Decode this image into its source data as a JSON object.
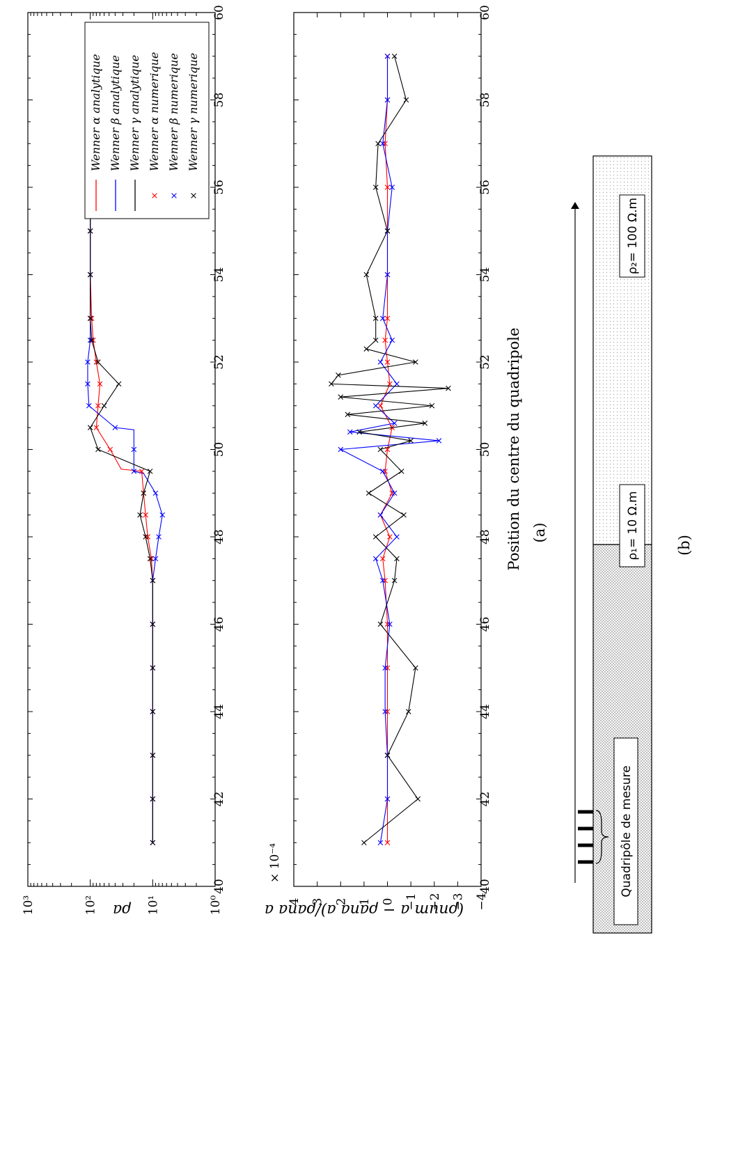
{
  "chart_data": [
    {
      "type": "line",
      "panel": "top",
      "ylabel": "ρa",
      "yscale": "log",
      "ylim": [
        1,
        1000
      ],
      "xlim": [
        40,
        60
      ],
      "xticks": [
        "40",
        "42",
        "44",
        "46",
        "48",
        "50",
        "52",
        "54",
        "56",
        "58",
        "60"
      ],
      "yticks": [
        "10⁰",
        "10¹",
        "10²",
        "10³"
      ],
      "legend": {
        "position": "top-right",
        "entries": [
          "Wenner α analytique",
          "Wenner β analytique",
          "Wenner γ analytique",
          "Wenner α numerique",
          "Wenner β numerique",
          "Wenner γ numerique"
        ]
      },
      "series": [
        {
          "name": "Wenner α analytique",
          "color": "#ff0000",
          "style": "line",
          "x": [
            41,
            42,
            43,
            44,
            45,
            46,
            47,
            47.5,
            48,
            48.5,
            49,
            49.5,
            49.55,
            50,
            50.5,
            51,
            51.5,
            52,
            52.5,
            53,
            54,
            55,
            56,
            57,
            58,
            59
          ],
          "y": [
            10,
            10,
            10,
            10,
            10,
            10,
            10,
            10.5,
            12,
            13,
            14,
            15,
            32,
            48,
            80,
            75,
            70,
            80,
            90,
            95,
            100,
            100,
            100,
            100,
            100,
            100
          ]
        },
        {
          "name": "Wenner β analytique",
          "color": "#0000ff",
          "style": "line",
          "x": [
            41,
            42,
            43,
            44,
            45,
            46,
            47,
            47.5,
            48,
            48.5,
            49,
            49.45,
            49.5,
            50,
            50.45,
            50.5,
            51,
            51.5,
            52,
            52.5,
            53,
            54,
            55,
            56,
            57,
            58,
            59
          ],
          "y": [
            10,
            10,
            10,
            10,
            10,
            10,
            10,
            9,
            8,
            7,
            9,
            14,
            20,
            20,
            20,
            40,
            105,
            110,
            110,
            100,
            100,
            100,
            100,
            100,
            100,
            100,
            100
          ]
        },
        {
          "name": "Wenner γ analytique",
          "color": "#000000",
          "style": "line",
          "x": [
            41,
            42,
            43,
            44,
            45,
            46,
            47,
            47.5,
            48,
            48.5,
            49,
            49.5,
            50,
            50.5,
            51,
            51.5,
            52,
            52.5,
            53,
            54,
            55,
            56,
            57,
            58,
            59
          ],
          "y": [
            10,
            10,
            10,
            10,
            10,
            10,
            10,
            11,
            13,
            16,
            14,
            11,
            75,
            100,
            60,
            35,
            75,
            95,
            100,
            100,
            100,
            100,
            100,
            100,
            100
          ]
        },
        {
          "name": "Wenner α numerique",
          "color": "#ff0000",
          "style": "markers",
          "x": [
            41,
            42,
            43,
            44,
            45,
            46,
            47,
            47.5,
            48,
            48.5,
            49,
            49.5,
            50,
            50.5,
            51,
            51.5,
            52,
            52.5,
            53,
            54,
            55,
            56,
            57,
            58,
            59
          ],
          "y": [
            10,
            10,
            10,
            10,
            10,
            10,
            10,
            10.5,
            12,
            13,
            14,
            15,
            48,
            80,
            75,
            70,
            80,
            90,
            95,
            100,
            100,
            100,
            100,
            100,
            100
          ]
        },
        {
          "name": "Wenner β numerique",
          "color": "#0000ff",
          "style": "markers",
          "x": [
            41,
            42,
            43,
            44,
            45,
            46,
            47,
            47.5,
            48,
            48.5,
            49,
            49.5,
            50,
            50.5,
            51,
            51.5,
            52,
            52.5,
            53,
            54,
            55,
            56,
            57,
            58,
            59
          ],
          "y": [
            10,
            10,
            10,
            10,
            10,
            10,
            10,
            9,
            8,
            7,
            9,
            20,
            20,
            40,
            105,
            110,
            110,
            100,
            100,
            100,
            100,
            100,
            100,
            100,
            100
          ]
        },
        {
          "name": "Wenner γ numerique",
          "color": "#000000",
          "style": "markers",
          "x": [
            41,
            42,
            43,
            44,
            45,
            46,
            47,
            47.5,
            48,
            48.5,
            49,
            49.5,
            50,
            50.5,
            51,
            51.5,
            52,
            52.5,
            53,
            54,
            55,
            56,
            57,
            58,
            59
          ],
          "y": [
            10,
            10,
            10,
            10,
            10,
            10,
            10,
            11,
            13,
            16,
            14,
            11,
            75,
            100,
            60,
            35,
            75,
            95,
            100,
            100,
            100,
            100,
            100,
            100,
            100
          ]
        }
      ]
    },
    {
      "type": "line",
      "panel": "bottom",
      "ylabel": "(ρnum a − ρana a)/ρana a",
      "ylim": [
        -4,
        4
      ],
      "xlim": [
        40,
        60
      ],
      "multiplier": "× 10⁻⁴",
      "xticks": [
        "40",
        "42",
        "44",
        "46",
        "48",
        "50",
        "52",
        "54",
        "56",
        "58",
        "60"
      ],
      "yticks": [
        "−4",
        "−3",
        "−2",
        "−1",
        "0",
        "1",
        "2",
        "3",
        "4"
      ],
      "series": [
        {
          "name": "Wenner α",
          "color": "#ff0000",
          "x": [
            41,
            42,
            43,
            44,
            45,
            46,
            47,
            47.5,
            48,
            48.5,
            49,
            49.5,
            50,
            50.5,
            51,
            51.5,
            52,
            52.5,
            53,
            54,
            55,
            56,
            57,
            58,
            59
          ],
          "y": [
            0.0,
            0.0,
            0.0,
            0.0,
            0.0,
            0.0,
            0.1,
            0.2,
            -0.1,
            0.3,
            -0.2,
            0.1,
            0.0,
            -0.2,
            0.3,
            -0.1,
            0.0,
            0.1,
            0.0,
            0.0,
            0.0,
            0.0,
            0.1,
            0.0,
            0.0
          ]
        },
        {
          "name": "Wenner β",
          "color": "#0000ff",
          "x": [
            41,
            42,
            43,
            44,
            45,
            46,
            47,
            47.5,
            48,
            48.5,
            49,
            49.5,
            50,
            50.2,
            50.4,
            50.6,
            51,
            51.5,
            52,
            52.5,
            53,
            54,
            55,
            56,
            57,
            58,
            59
          ],
          "y": [
            0.3,
            0.0,
            0.0,
            0.1,
            0.1,
            -0.1,
            0.2,
            0.5,
            -0.4,
            0.3,
            -0.3,
            0.2,
            2.0,
            -2.2,
            1.6,
            -0.3,
            0.5,
            -0.4,
            0.3,
            -0.2,
            0.2,
            0.0,
            0.0,
            -0.2,
            0.2,
            0.0,
            0.0
          ]
        },
        {
          "name": "Wenner γ",
          "color": "#000000",
          "x": [
            41,
            42,
            43,
            44,
            45,
            46,
            47,
            47.5,
            48,
            48.5,
            49,
            49.5,
            50,
            50.2,
            50.4,
            50.6,
            50.8,
            51,
            51.2,
            51.4,
            51.5,
            51.7,
            52,
            52.3,
            52.5,
            53,
            54,
            55,
            56,
            57,
            58,
            59
          ],
          "y": [
            1.0,
            -1.3,
            0.0,
            -0.9,
            -1.2,
            0.3,
            -0.3,
            -0.4,
            0.5,
            -0.7,
            0.8,
            -0.6,
            0.3,
            -1.0,
            1.2,
            -1.6,
            1.7,
            -1.9,
            2.0,
            -2.6,
            2.4,
            2.1,
            -1.2,
            0.9,
            0.5,
            0.5,
            0.9,
            0.0,
            0.5,
            0.4,
            -0.8,
            -0.3
          ]
        }
      ]
    }
  ],
  "caption_a": "(a)",
  "caption_b": "(b)",
  "xlabel": "Position du centre du quadripole",
  "schematic": {
    "quadripole_label": "Quadripôle de mesure",
    "rho1_label": "ρ₁= 10 Ω.m",
    "rho2_label": "ρ₂= 100 Ω.m"
  }
}
